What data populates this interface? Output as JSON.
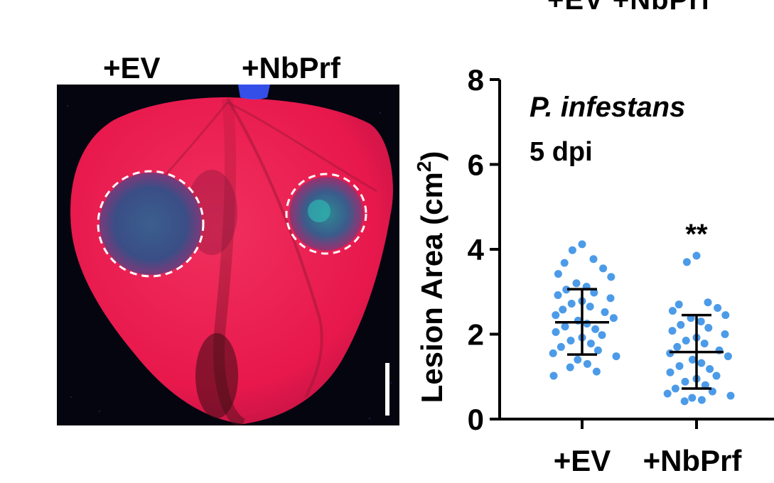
{
  "top_clipped_text": "+EV  +NbPrf",
  "photo": {
    "labels": [
      "+EV",
      "+NbPrf"
    ]
  },
  "chart_data": {
    "type": "scatter",
    "title": "P. infestans",
    "subtitle": "5 dpi",
    "xlabel": "",
    "ylabel": "Lesion Area (cm",
    "ylabel_sup": "2",
    "ylabel_close": ")",
    "categories": [
      "+EV",
      "+NbPrf"
    ],
    "ylim": [
      0,
      8
    ],
    "yticks": [
      0,
      2,
      4,
      6,
      8
    ],
    "point_color": "#4c9be8",
    "significance": {
      "category": "+NbPrf",
      "label": "**",
      "y": 4.5
    },
    "series": [
      {
        "category": "+EV",
        "mean": 2.28,
        "sd_upper": 3.06,
        "sd_lower": 1.52,
        "values": [
          4.12,
          3.98,
          3.77,
          3.68,
          3.55,
          3.42,
          3.35,
          3.2,
          3.12,
          3.05,
          2.98,
          2.92,
          2.85,
          2.78,
          2.72,
          2.65,
          2.58,
          2.52,
          2.45,
          2.38,
          2.32,
          2.25,
          2.18,
          2.12,
          2.05,
          1.98,
          1.92,
          1.85,
          1.78,
          1.7,
          1.62,
          1.55,
          1.48,
          1.4,
          1.3,
          1.22,
          1.12,
          1.02
        ]
      },
      {
        "category": "+NbPrf",
        "mean": 1.58,
        "sd_upper": 2.45,
        "sd_lower": 0.72,
        "values": [
          3.85,
          3.7,
          2.75,
          2.7,
          2.62,
          2.55,
          2.45,
          2.38,
          2.3,
          2.22,
          2.15,
          2.08,
          2.0,
          1.92,
          1.85,
          1.78,
          1.7,
          1.62,
          1.55,
          1.48,
          1.4,
          1.32,
          1.25,
          1.18,
          1.1,
          1.02,
          0.95,
          0.88,
          0.8,
          0.72,
          0.65,
          0.6,
          0.55,
          0.5,
          0.45,
          0.42
        ]
      }
    ]
  }
}
